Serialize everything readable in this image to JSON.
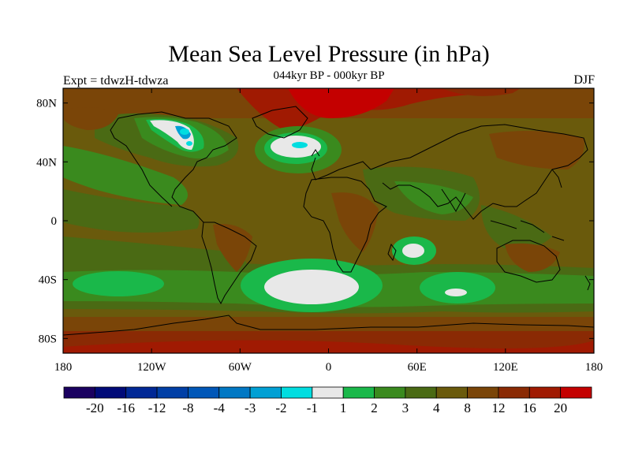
{
  "title": "Mean Sea Level Pressure (in hPa)",
  "subtitle": "044kyr BP - 000kyr BP",
  "experiment": "Expt = tdwzH-tdwza",
  "season": "DJF",
  "map": {
    "projection": "cylindrical-equidistant",
    "lon_range": [
      -180,
      180
    ],
    "lat_range": [
      -90,
      90
    ],
    "lat_ticks": [
      {
        "v": 80,
        "t": "80N"
      },
      {
        "v": 40,
        "t": "40N"
      },
      {
        "v": 0,
        "t": "0"
      },
      {
        "v": -40,
        "t": "40S"
      },
      {
        "v": -80,
        "t": "80S"
      }
    ],
    "lon_ticks": [
      {
        "v": -180,
        "t": "180"
      },
      {
        "v": -120,
        "t": "120W"
      },
      {
        "v": -60,
        "t": "60W"
      },
      {
        "v": 0,
        "t": "0"
      },
      {
        "v": 60,
        "t": "60E"
      },
      {
        "v": 120,
        "t": "120E"
      },
      {
        "v": 180,
        "t": "180"
      }
    ]
  },
  "colorbar": {
    "colors": [
      "#1a0060",
      "#000a78",
      "#002896",
      "#003fa6",
      "#0057b8",
      "#0078c4",
      "#00a0d4",
      "#00dde0",
      "#e8e8e8",
      "#1ab84a",
      "#3a8a1e",
      "#4a6a14",
      "#6a5a0c",
      "#7a4508",
      "#8a2a04",
      "#a01a02",
      "#c40000"
    ],
    "labels": [
      "-20",
      "-16",
      "-12",
      "-8",
      "-4",
      "-3",
      "-2",
      "-1",
      "1",
      "2",
      "3",
      "4",
      "8",
      "12",
      "16",
      "20"
    ]
  }
}
